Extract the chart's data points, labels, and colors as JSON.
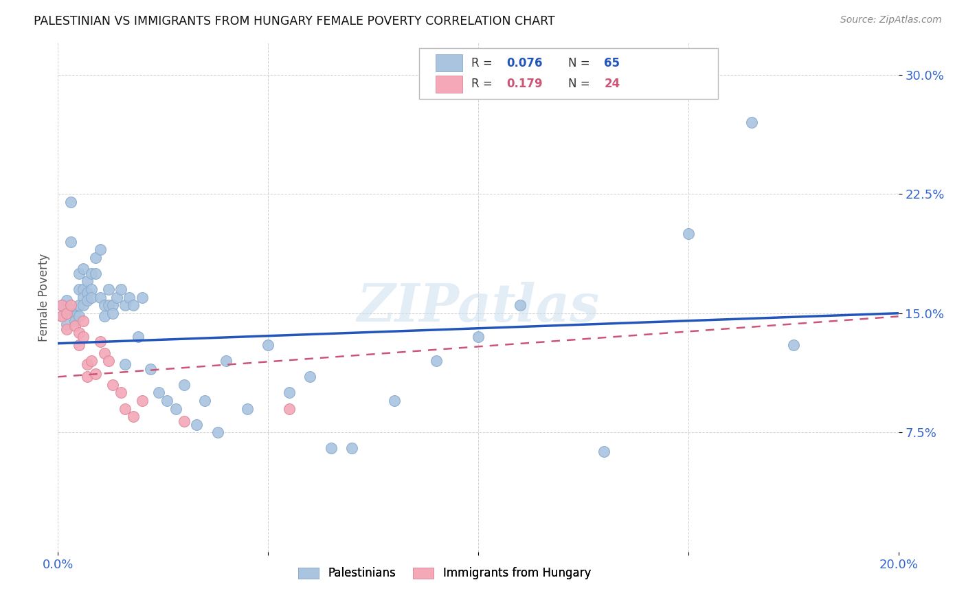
{
  "title": "PALESTINIAN VS IMMIGRANTS FROM HUNGARY FEMALE POVERTY CORRELATION CHART",
  "source": "Source: ZipAtlas.com",
  "ylabel": "Female Poverty",
  "xlim": [
    0.0,
    0.2
  ],
  "ylim": [
    0.0,
    0.32
  ],
  "yticks": [
    0.075,
    0.15,
    0.225,
    0.3
  ],
  "ytick_labels": [
    "7.5%",
    "15.0%",
    "22.5%",
    "30.0%"
  ],
  "xticks": [
    0.0,
    0.05,
    0.1,
    0.15,
    0.2
  ],
  "xtick_labels": [
    "0.0%",
    "",
    "",
    "",
    "20.0%"
  ],
  "blue_color": "#aac4e0",
  "pink_color": "#f4a8b8",
  "line_blue": "#2255bb",
  "line_pink": "#cc5577",
  "watermark": "ZIPatlas",
  "pal_x": [
    0.001,
    0.001,
    0.002,
    0.002,
    0.003,
    0.003,
    0.003,
    0.004,
    0.004,
    0.004,
    0.005,
    0.005,
    0.005,
    0.005,
    0.006,
    0.006,
    0.006,
    0.006,
    0.007,
    0.007,
    0.007,
    0.008,
    0.008,
    0.008,
    0.009,
    0.009,
    0.01,
    0.01,
    0.011,
    0.011,
    0.012,
    0.012,
    0.013,
    0.013,
    0.014,
    0.015,
    0.016,
    0.016,
    0.017,
    0.018,
    0.019,
    0.02,
    0.022,
    0.024,
    0.026,
    0.028,
    0.03,
    0.033,
    0.035,
    0.038,
    0.04,
    0.045,
    0.05,
    0.055,
    0.06,
    0.065,
    0.07,
    0.08,
    0.09,
    0.1,
    0.11,
    0.13,
    0.15,
    0.165,
    0.175
  ],
  "pal_y": [
    0.155,
    0.148,
    0.143,
    0.158,
    0.22,
    0.195,
    0.152,
    0.15,
    0.148,
    0.145,
    0.175,
    0.165,
    0.155,
    0.148,
    0.178,
    0.165,
    0.16,
    0.155,
    0.17,
    0.163,
    0.158,
    0.175,
    0.165,
    0.16,
    0.185,
    0.175,
    0.19,
    0.16,
    0.155,
    0.148,
    0.165,
    0.155,
    0.155,
    0.15,
    0.16,
    0.165,
    0.155,
    0.118,
    0.16,
    0.155,
    0.135,
    0.16,
    0.115,
    0.1,
    0.095,
    0.09,
    0.105,
    0.08,
    0.095,
    0.075,
    0.12,
    0.09,
    0.13,
    0.1,
    0.11,
    0.065,
    0.065,
    0.095,
    0.12,
    0.135,
    0.155,
    0.063,
    0.2,
    0.27,
    0.13
  ],
  "hun_x": [
    0.001,
    0.001,
    0.002,
    0.002,
    0.003,
    0.004,
    0.005,
    0.005,
    0.006,
    0.006,
    0.007,
    0.007,
    0.008,
    0.009,
    0.01,
    0.011,
    0.012,
    0.013,
    0.015,
    0.016,
    0.018,
    0.02,
    0.03,
    0.055
  ],
  "hun_y": [
    0.155,
    0.148,
    0.15,
    0.14,
    0.155,
    0.142,
    0.138,
    0.13,
    0.145,
    0.135,
    0.118,
    0.11,
    0.12,
    0.112,
    0.132,
    0.125,
    0.12,
    0.105,
    0.1,
    0.09,
    0.085,
    0.095,
    0.082,
    0.09
  ],
  "pal_line_x0": 0.0,
  "pal_line_y0": 0.131,
  "pal_line_x1": 0.2,
  "pal_line_y1": 0.15,
  "hun_line_x0": 0.0,
  "hun_line_y0": 0.11,
  "hun_line_x1": 0.2,
  "hun_line_y1": 0.148
}
